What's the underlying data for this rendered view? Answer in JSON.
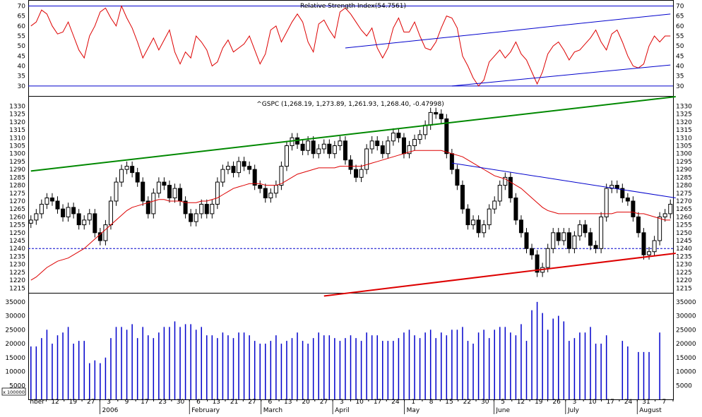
{
  "chart_data": [
    {
      "type": "line",
      "panel": "rsi",
      "title": "Relative Strength Index(54.7561)",
      "ylim": [
        25,
        73
      ],
      "yticks": [
        30,
        35,
        40,
        45,
        50,
        55,
        60,
        65,
        70
      ],
      "reference_lines": [
        30,
        70
      ],
      "series": [
        {
          "values": [
            60,
            62,
            68,
            66,
            60,
            56,
            57,
            62,
            55,
            48,
            44,
            55,
            60,
            67,
            69,
            64,
            60,
            70,
            64,
            59,
            52,
            44,
            49,
            54,
            48,
            53,
            58,
            47,
            41,
            47,
            44,
            55,
            52,
            48,
            40,
            42,
            49,
            53,
            47,
            49,
            51,
            55,
            48,
            41,
            46,
            58,
            60,
            52,
            57,
            62,
            66,
            62,
            52,
            47,
            61,
            63,
            58,
            54,
            67,
            69,
            66,
            62,
            58,
            55,
            59,
            49,
            44,
            49,
            59,
            64,
            57,
            57,
            62,
            55,
            49,
            48,
            52,
            59,
            65,
            64,
            59,
            45,
            40,
            34,
            30,
            33,
            42,
            45,
            48,
            44,
            47,
            52,
            46,
            43,
            37,
            31,
            37,
            46,
            50,
            52,
            48,
            43,
            47,
            48,
            51,
            54,
            58,
            52,
            48,
            56,
            58,
            52,
            45,
            40,
            39,
            41,
            50,
            55,
            52,
            55,
            55
          ],
          "color": "#dd0000"
        }
      ],
      "trendlines": [
        {
          "points": [
            [
              59,
              49
            ],
            [
              120,
              66
            ]
          ],
          "color": "#0000cc"
        },
        {
          "points": [
            [
              79,
              30
            ],
            [
              120,
              40.5
            ]
          ],
          "color": "#0000cc"
        }
      ]
    },
    {
      "type": "candlestick",
      "panel": "price",
      "title": "^GSPC (1,268.19, 1,273.89, 1,261.93, 1,268.40, -0.47998)",
      "ylim": [
        1212,
        1336
      ],
      "yticks": [
        1215,
        1220,
        1225,
        1230,
        1235,
        1240,
        1245,
        1250,
        1255,
        1260,
        1265,
        1270,
        1275,
        1280,
        1285,
        1290,
        1295,
        1300,
        1305,
        1310,
        1315,
        1320,
        1325,
        1330
      ],
      "x_labels": [
        "nber",
        "12",
        "19",
        "27",
        "3",
        "9",
        "17",
        "23",
        "30",
        "6",
        "13",
        "21",
        "27",
        "6",
        "13",
        "20",
        "27",
        "3",
        "10",
        "17",
        "24",
        "1",
        "8",
        "15",
        "22",
        "30",
        "5",
        "12",
        "19",
        "26",
        "3",
        "10",
        "17",
        "24",
        "31",
        "7"
      ],
      "month_labels": [
        "2006",
        "February",
        "March",
        "April",
        "May",
        "June",
        "July",
        "August"
      ],
      "reference_lines": [
        1240
      ],
      "closes": [
        1258,
        1262,
        1268,
        1272,
        1270,
        1265,
        1260,
        1266,
        1262,
        1255,
        1258,
        1262,
        1250,
        1245,
        1255,
        1270,
        1282,
        1290,
        1292,
        1288,
        1282,
        1270,
        1262,
        1275,
        1282,
        1280,
        1272,
        1278,
        1270,
        1262,
        1257,
        1262,
        1268,
        1262,
        1268,
        1282,
        1290,
        1292,
        1288,
        1295,
        1292,
        1290,
        1280,
        1278,
        1272,
        1275,
        1280,
        1292,
        1305,
        1310,
        1306,
        1302,
        1308,
        1300,
        1303,
        1306,
        1300,
        1305,
        1308,
        1296,
        1290,
        1285,
        1290,
        1303,
        1308,
        1305,
        1300,
        1308,
        1313,
        1310,
        1300,
        1305,
        1309,
        1312,
        1318,
        1326,
        1325,
        1322,
        1300,
        1290,
        1280,
        1265,
        1255,
        1258,
        1250,
        1255,
        1265,
        1270,
        1280,
        1285,
        1272,
        1258,
        1250,
        1240,
        1236,
        1225,
        1228,
        1240,
        1250,
        1245,
        1250,
        1240,
        1248,
        1255,
        1250,
        1242,
        1240,
        1260,
        1278,
        1280,
        1278,
        1272,
        1270,
        1260,
        1250,
        1236,
        1238,
        1245,
        1260,
        1262,
        1268
      ],
      "series": [
        {
          "name": "MA",
          "values": [
            1220,
            1222,
            1225,
            1228,
            1230,
            1232,
            1233,
            1234,
            1236,
            1238,
            1240,
            1243,
            1246,
            1249,
            1252,
            1255,
            1258,
            1261,
            1264,
            1266,
            1267,
            1268,
            1269,
            1270,
            1271,
            1271,
            1270,
            1270,
            1270,
            1269,
            1269,
            1269,
            1270,
            1270,
            1271,
            1272,
            1274,
            1276,
            1278,
            1279,
            1280,
            1281,
            1281,
            1281,
            1280,
            1280,
            1280,
            1281,
            1283,
            1285,
            1287,
            1288,
            1289,
            1290,
            1291,
            1291,
            1291,
            1291,
            1292,
            1292,
            1292,
            1292,
            1292,
            1293,
            1294,
            1295,
            1296,
            1297,
            1298,
            1299,
            1300,
            1301,
            1302,
            1302,
            1302,
            1302,
            1302,
            1302,
            1301,
            1300,
            1299,
            1298,
            1296,
            1294,
            1292,
            1290,
            1288,
            1286,
            1285,
            1284,
            1282,
            1280,
            1278,
            1275,
            1272,
            1269,
            1266,
            1264,
            1263,
            1262,
            1262,
            1262,
            1262,
            1262,
            1262,
            1262,
            1262,
            1262,
            1262,
            1262,
            1263,
            1263,
            1263,
            1263,
            1262,
            1262,
            1261,
            1260,
            1259,
            1258,
            1258
          ],
          "color": "#dd0000"
        }
      ],
      "trendlines": [
        {
          "points": [
            [
              0,
              1289
            ],
            [
              121,
              1336
            ]
          ],
          "color": "#008800"
        },
        {
          "points": [
            [
              55,
              1210
            ],
            [
              121,
              1237
            ]
          ],
          "color": "#dd0000"
        },
        {
          "points": [
            [
              79,
              1294
            ],
            [
              121,
              1272
            ]
          ],
          "color": "#0000cc"
        }
      ]
    },
    {
      "type": "bar",
      "panel": "volume",
      "multiplier_label": "x 100000",
      "ylim": [
        0,
        38000
      ],
      "yticks": [
        5000,
        10000,
        15000,
        20000,
        25000,
        30000,
        35000
      ],
      "values": [
        19000,
        19000,
        22000,
        25000,
        20000,
        23000,
        24000,
        26000,
        20000,
        21000,
        21000,
        13000,
        14000,
        13000,
        15000,
        22000,
        26000,
        26000,
        25000,
        27000,
        22000,
        26000,
        23000,
        22000,
        24000,
        26000,
        26000,
        28000,
        26000,
        27000,
        27000,
        25000,
        26000,
        23000,
        23000,
        22000,
        24000,
        23000,
        22000,
        24000,
        24000,
        23000,
        21000,
        20000,
        20000,
        21000,
        23000,
        20000,
        21000,
        22000,
        24000,
        21000,
        20000,
        22000,
        24000,
        23000,
        23000,
        22000,
        21000,
        22000,
        23000,
        22000,
        21000,
        24000,
        23000,
        23000,
        21000,
        21000,
        21000,
        22000,
        24000,
        25000,
        23000,
        22000,
        24000,
        25000,
        22000,
        24000,
        23000,
        25000,
        25000,
        26000,
        21000,
        20000,
        24000,
        25000,
        22000,
        25000,
        26000,
        26000,
        24000,
        23000,
        27000,
        21000,
        32000,
        35000,
        31000,
        25000,
        29000,
        30000,
        28000,
        21000,
        22000,
        24000,
        24000,
        26000,
        20000,
        20000,
        23000,
        0,
        0,
        21000,
        19000,
        0,
        17000,
        17000,
        17000,
        0,
        24000,
        0,
        0
      ],
      "color": "#0000cc"
    }
  ]
}
